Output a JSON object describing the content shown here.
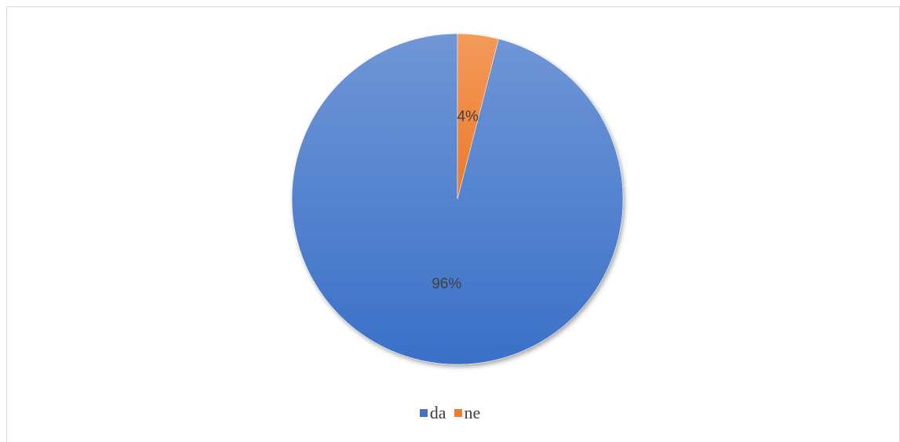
{
  "chart_data": {
    "type": "pie",
    "categories": [
      "da",
      "ne"
    ],
    "values": [
      96,
      4
    ],
    "data_labels": [
      "96%",
      "4%"
    ],
    "colors": [
      "#4472C4",
      "#ED7D31"
    ],
    "start_angle_deg": 0,
    "direction": "counterclockwise",
    "legend_position": "bottom",
    "legend": [
      {
        "label": "da",
        "color": "#4472C4"
      },
      {
        "label": "ne",
        "color": "#ED7D31"
      }
    ]
  }
}
